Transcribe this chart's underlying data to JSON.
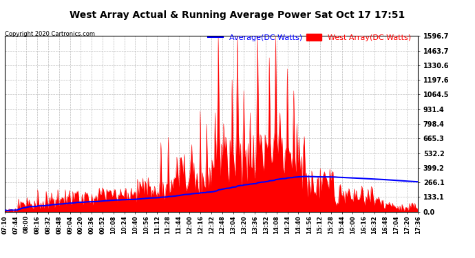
{
  "title": "West Array Actual & Running Average Power Sat Oct 17 17:51",
  "copyright": "Copyright 2020 Cartronics.com",
  "legend_average": "Average(DC Watts)",
  "legend_west": "West Array(DC Watts)",
  "yticks": [
    0.0,
    133.1,
    266.1,
    399.2,
    532.2,
    665.3,
    798.4,
    931.4,
    1064.5,
    1197.6,
    1330.6,
    1463.7,
    1596.7
  ],
  "ymax": 1596.7,
  "ymin": 0.0,
  "bg_color": "#ffffff",
  "grid_color": "#bbbbbb",
  "fill_color": "#ff0000",
  "avg_color": "#0000ff",
  "title_color": "#000000",
  "avg_label_color": "#0000ff",
  "west_label_color": "#ff0000",
  "copyright_color": "#000000",
  "xtick_labels": [
    "07:10",
    "07:44",
    "08:00",
    "08:16",
    "08:32",
    "08:48",
    "09:04",
    "09:20",
    "09:36",
    "09:52",
    "10:08",
    "10:24",
    "10:40",
    "10:56",
    "11:12",
    "11:28",
    "11:44",
    "12:00",
    "12:16",
    "12:32",
    "12:48",
    "13:04",
    "13:20",
    "13:36",
    "13:52",
    "14:08",
    "14:24",
    "14:40",
    "14:56",
    "15:12",
    "15:28",
    "15:44",
    "16:00",
    "16:16",
    "16:32",
    "16:48",
    "17:04",
    "17:20",
    "17:36"
  ]
}
